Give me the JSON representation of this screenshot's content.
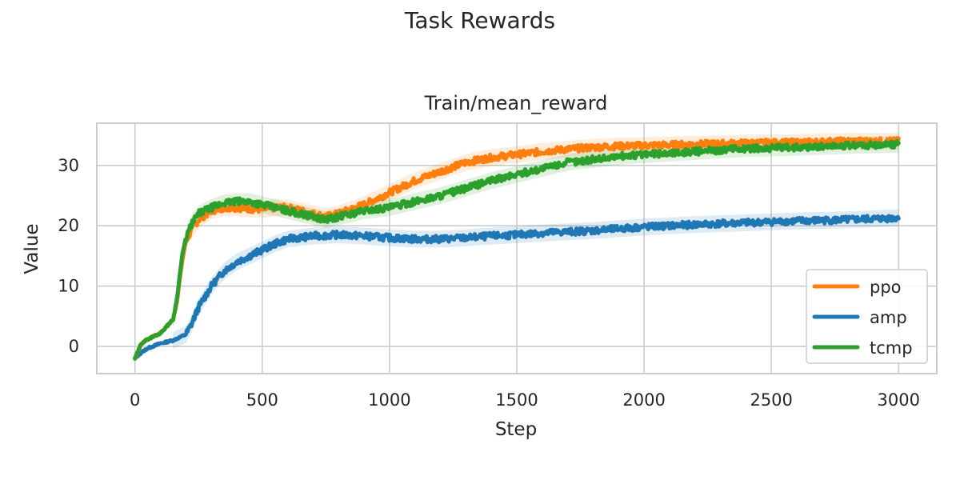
{
  "figure": {
    "suptitle": "Task Rewards"
  },
  "chart_data": {
    "type": "line",
    "title": "Train/mean_reward",
    "xlabel": "Step",
    "ylabel": "Value",
    "xlim": [
      -150,
      3150
    ],
    "ylim": [
      -4.5,
      37
    ],
    "xticks": [
      0,
      500,
      1000,
      1500,
      2000,
      2500,
      3000
    ],
    "yticks": [
      0,
      10,
      20,
      30
    ],
    "grid": true,
    "legend_position": "lower-right",
    "series": [
      {
        "name": "ppo",
        "color": "#ff7f0e",
        "x": [
          0,
          25,
          50,
          100,
          150,
          165,
          185,
          200,
          225,
          250,
          300,
          350,
          400,
          450,
          500,
          550,
          600,
          650,
          700,
          750,
          800,
          900,
          1000,
          1100,
          1200,
          1300,
          1400,
          1500,
          1600,
          1700,
          1800,
          1900,
          2000,
          2200,
          2400,
          2600,
          2800,
          3000
        ],
        "values": [
          -2,
          0.5,
          1.2,
          2.2,
          4.5,
          7.5,
          14,
          17.5,
          19.5,
          21,
          22.5,
          23,
          23,
          22.8,
          22.7,
          23,
          23,
          22.5,
          22,
          21.5,
          22,
          23.5,
          25.5,
          27.5,
          29,
          30.5,
          31.3,
          31.8,
          32.3,
          32.7,
          33,
          33.2,
          33.3,
          33.5,
          33.7,
          33.8,
          34,
          34
        ]
      },
      {
        "name": "amp",
        "color": "#1f77b4",
        "x": [
          0,
          25,
          50,
          100,
          150,
          200,
          220,
          250,
          300,
          350,
          400,
          450,
          500,
          550,
          600,
          700,
          800,
          900,
          1000,
          1100,
          1200,
          1300,
          1400,
          1500,
          1600,
          1700,
          1800,
          1900,
          2000,
          2200,
          2400,
          2600,
          2800,
          3000
        ],
        "values": [
          -2,
          -1,
          -0.3,
          0.5,
          1,
          2,
          3.5,
          6.5,
          10,
          12.5,
          14,
          15,
          16,
          17,
          17.8,
          18.3,
          18.5,
          18.3,
          18,
          17.8,
          17.8,
          18,
          18.3,
          18.5,
          18.8,
          19,
          19.2,
          19.5,
          19.8,
          20.2,
          20.5,
          20.8,
          21,
          21.3
        ]
      },
      {
        "name": "tcmp",
        "color": "#2ca02c",
        "x": [
          0,
          25,
          50,
          100,
          150,
          165,
          185,
          200,
          225,
          250,
          300,
          350,
          400,
          450,
          500,
          550,
          600,
          650,
          700,
          750,
          800,
          900,
          1000,
          1100,
          1200,
          1300,
          1400,
          1500,
          1600,
          1700,
          1800,
          1900,
          2000,
          2200,
          2400,
          2600,
          2800,
          3000
        ],
        "values": [
          -2,
          0.5,
          1.2,
          2.2,
          4.5,
          8,
          15,
          18,
          20.5,
          22,
          23,
          23.8,
          24,
          24,
          23.5,
          23,
          22.5,
          22,
          21.5,
          21,
          21.5,
          22.5,
          23,
          24,
          25,
          26.2,
          27.5,
          28.5,
          29.5,
          30.5,
          31,
          31.5,
          31.8,
          32.3,
          32.8,
          33,
          33.3,
          33.5
        ]
      }
    ]
  }
}
